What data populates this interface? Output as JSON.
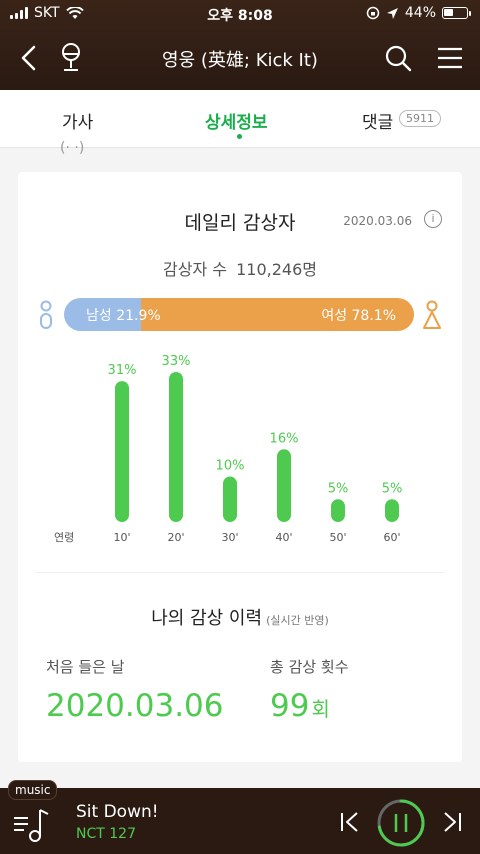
{
  "status": {
    "carrier": "SKT",
    "time": "오후 8:08",
    "battery": "44%",
    "battery_level": 0.44
  },
  "header": {
    "title": "영웅 (英雄; Kick It)"
  },
  "tabs": {
    "lyrics": "가사",
    "detail": "상세정보",
    "comments": "댓글",
    "comment_count": "5911"
  },
  "partial": "(· ·)",
  "card": {
    "title": "데일리 감상자",
    "date": "2020.03.06",
    "info": "i",
    "listeners_label": "감상자 수",
    "listeners_value": "110,246명",
    "male_label": "남성 21.9%",
    "female_label": "여성 78.1%",
    "male_share": 0.219,
    "female_share": 0.781,
    "colors": {
      "male": "#9bbce6",
      "female": "#eba04a",
      "bar": "#4fca50"
    }
  },
  "chart_data": {
    "type": "bar",
    "xlabel": "연령",
    "categories": [
      "10'",
      "20'",
      "30'",
      "40'",
      "50'",
      "60'"
    ],
    "values": [
      31,
      33,
      10,
      16,
      5,
      5
    ],
    "labels": [
      "31%",
      "33%",
      "10%",
      "16%",
      "5%",
      "5%"
    ],
    "ylim": [
      0,
      33
    ]
  },
  "my_history": {
    "title": "나의 감상 이력",
    "subtitle": "(실시간 반영)",
    "first_label": "처음 들은 날",
    "first_value": "2020.03.06",
    "count_label": "총 감상 횟수",
    "count_value": "99",
    "count_unit": "회"
  },
  "player": {
    "tag": "music",
    "song": "Sit Down!",
    "artist": "NCT 127",
    "progress": 0.72
  }
}
